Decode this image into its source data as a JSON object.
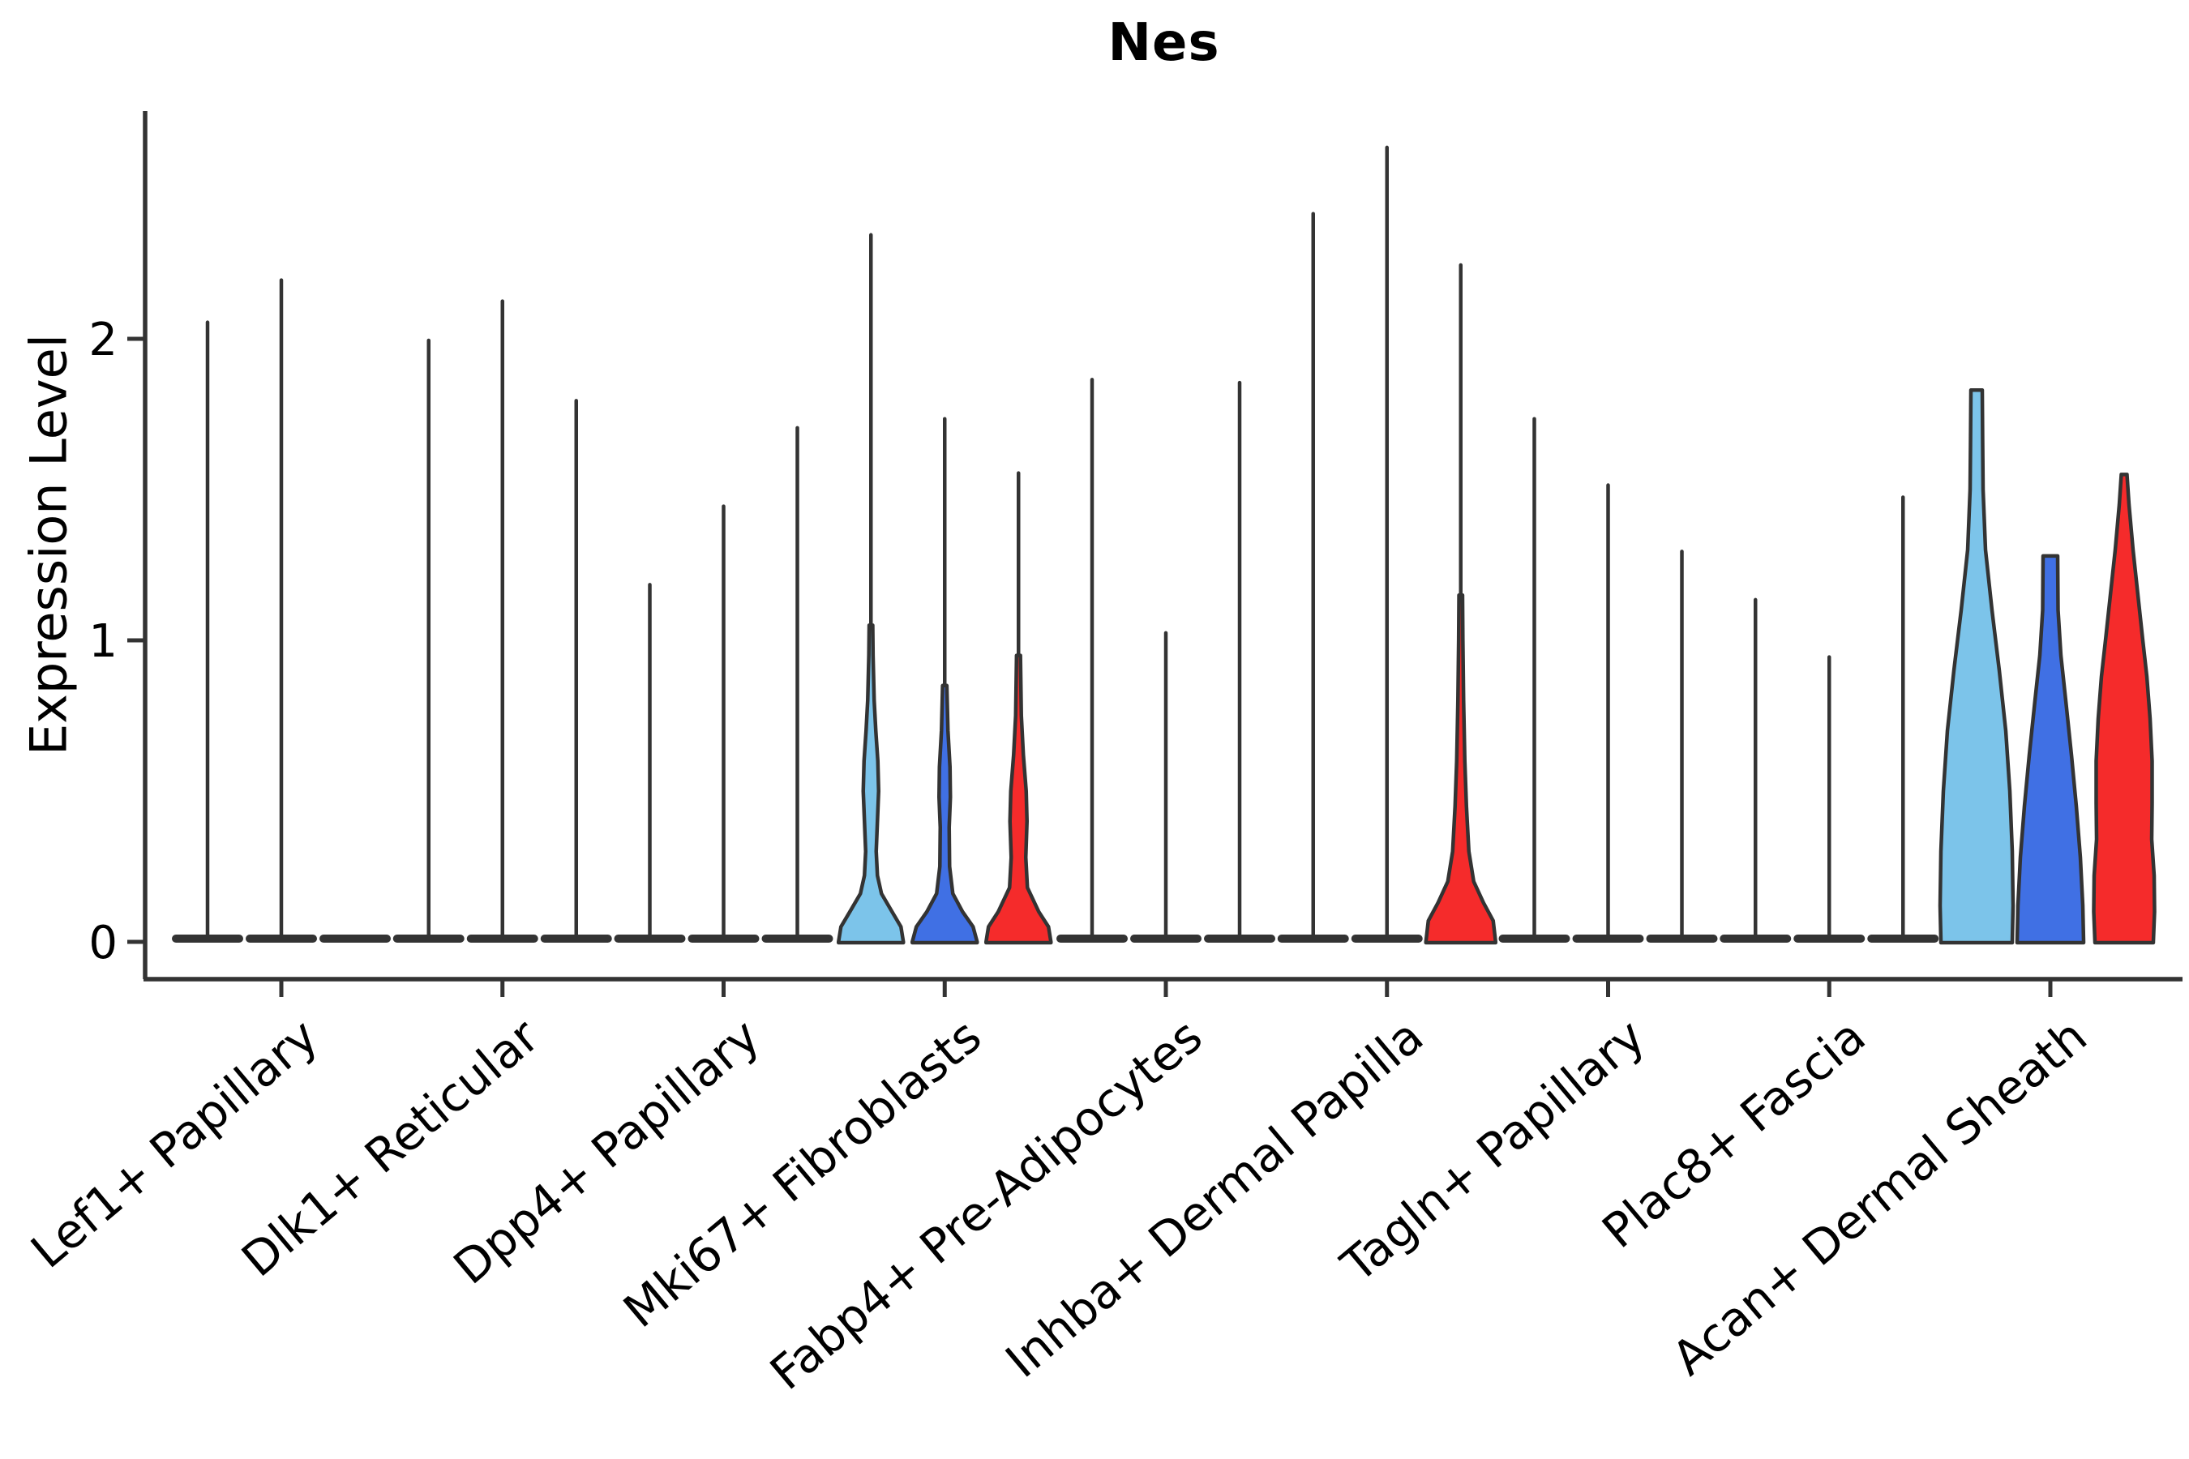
{
  "chart_data": {
    "type": "violin",
    "title": "Nes",
    "ylabel": "Expression Level",
    "yticks": [
      0,
      1,
      2
    ],
    "ylim": [
      0,
      2.75
    ],
    "x_tick_rotation_deg": 40,
    "grid": false,
    "legend_position": "none",
    "outline_color": "#333333",
    "series_colors": {
      "lightblue": "#7CC4EA",
      "blue": "#4070E4",
      "red": "#F52B2B"
    },
    "description": "Split violin plot of Nes expression per fibroblast cluster; three violins (lightblue, blue, red) per cluster; max value listed per violin; most mass at 0.",
    "categories": [
      {
        "label": "Lef1+ Papillary",
        "violins": [
          {
            "color": "lightblue",
            "shape": "spike",
            "max": 2.06
          },
          {
            "color": "blue",
            "shape": "spike",
            "max": 2.2
          },
          {
            "color": "red",
            "shape": "flat",
            "max": 0
          }
        ]
      },
      {
        "label": "Dlk1+ Reticular",
        "violins": [
          {
            "color": "lightblue",
            "shape": "spike",
            "max": 2.0
          },
          {
            "color": "blue",
            "shape": "spike",
            "max": 2.13
          },
          {
            "color": "red",
            "shape": "spike",
            "max": 1.8
          }
        ]
      },
      {
        "label": "Dpp4+ Papillary",
        "violins": [
          {
            "color": "lightblue",
            "shape": "spike",
            "max": 1.19
          },
          {
            "color": "blue",
            "shape": "spike",
            "max": 1.45
          },
          {
            "color": "red",
            "shape": "spike",
            "max": 1.71
          }
        ]
      },
      {
        "label": "Mki67+ Fibroblasts",
        "violins": [
          {
            "color": "lightblue",
            "shape": "belly",
            "max": 2.35,
            "profile": [
              [
                0,
                40
              ],
              [
                0.05,
                37
              ],
              [
                0.1,
                26
              ],
              [
                0.16,
                13
              ],
              [
                0.22,
                8
              ],
              [
                0.3,
                6.5
              ],
              [
                0.4,
                8
              ],
              [
                0.5,
                9.5
              ],
              [
                0.6,
                8.5
              ],
              [
                0.7,
                6
              ],
              [
                0.8,
                4
              ],
              [
                0.95,
                2.6
              ],
              [
                1.05,
                2.2
              ]
            ]
          },
          {
            "color": "blue",
            "shape": "belly",
            "max": 1.74,
            "profile": [
              [
                0,
                40
              ],
              [
                0.05,
                35
              ],
              [
                0.1,
                22
              ],
              [
                0.16,
                10
              ],
              [
                0.25,
                6
              ],
              [
                0.38,
                5.5
              ],
              [
                0.48,
                7
              ],
              [
                0.58,
                6.5
              ],
              [
                0.7,
                4
              ],
              [
                0.85,
                2.6
              ]
            ]
          },
          {
            "color": "red",
            "shape": "belly",
            "max": 1.56,
            "profile": [
              [
                0,
                40
              ],
              [
                0.05,
                37
              ],
              [
                0.1,
                25
              ],
              [
                0.18,
                11
              ],
              [
                0.28,
                9
              ],
              [
                0.4,
                10.5
              ],
              [
                0.5,
                9.5
              ],
              [
                0.62,
                6
              ],
              [
                0.75,
                3.5
              ],
              [
                0.95,
                2.4
              ]
            ]
          }
        ]
      },
      {
        "label": "Fabp4+ Pre-Adipocytes",
        "violins": [
          {
            "color": "lightblue",
            "shape": "spike",
            "max": 1.87
          },
          {
            "color": "blue",
            "shape": "spike",
            "max": 1.03
          },
          {
            "color": "red",
            "shape": "spike",
            "max": 1.86
          }
        ]
      },
      {
        "label": "Inhba+ Dermal Papilla",
        "violins": [
          {
            "color": "lightblue",
            "shape": "spike",
            "max": 2.42
          },
          {
            "color": "blue",
            "shape": "spike",
            "max": 2.64
          },
          {
            "color": "red",
            "shape": "belly",
            "max": 2.25,
            "profile": [
              [
                0,
                43
              ],
              [
                0.07,
                40
              ],
              [
                0.13,
                28
              ],
              [
                0.2,
                16
              ],
              [
                0.3,
                10
              ],
              [
                0.45,
                7
              ],
              [
                0.6,
                5
              ],
              [
                0.8,
                3.5
              ],
              [
                1.0,
                2.6
              ],
              [
                1.15,
                2.2
              ]
            ]
          }
        ]
      },
      {
        "label": "Tagln+ Papillary",
        "violins": [
          {
            "color": "lightblue",
            "shape": "spike",
            "max": 1.74
          },
          {
            "color": "blue",
            "shape": "spike",
            "max": 1.52
          },
          {
            "color": "red",
            "shape": "spike",
            "max": 1.3
          }
        ]
      },
      {
        "label": "Plac8+ Fascia",
        "violins": [
          {
            "color": "lightblue",
            "shape": "spike",
            "max": 1.14
          },
          {
            "color": "blue",
            "shape": "spike",
            "max": 0.95
          },
          {
            "color": "red",
            "shape": "spike",
            "max": 1.48
          }
        ]
      },
      {
        "label": "Acan+ Dermal Sheath",
        "violins": [
          {
            "color": "lightblue",
            "shape": "wide",
            "max": 1.83,
            "profile": [
              [
                0,
                44
              ],
              [
                0.12,
                45
              ],
              [
                0.3,
                44
              ],
              [
                0.5,
                41
              ],
              [
                0.7,
                36
              ],
              [
                0.9,
                28
              ],
              [
                1.1,
                19
              ],
              [
                1.3,
                11
              ],
              [
                1.5,
                8
              ],
              [
                1.65,
                7.5
              ],
              [
                1.83,
                7
              ]
            ]
          },
          {
            "color": "blue",
            "shape": "wide",
            "max": 1.28,
            "profile": [
              [
                0,
                41
              ],
              [
                0.12,
                40
              ],
              [
                0.28,
                37
              ],
              [
                0.45,
                32
              ],
              [
                0.62,
                26
              ],
              [
                0.8,
                19
              ],
              [
                0.95,
                13
              ],
              [
                1.1,
                9.5
              ],
              [
                1.28,
                9
              ]
            ]
          },
          {
            "color": "red",
            "shape": "wide",
            "max": 1.55,
            "profile": [
              [
                0,
                36
              ],
              [
                0.1,
                37.5
              ],
              [
                0.22,
                37
              ],
              [
                0.34,
                34
              ],
              [
                0.46,
                34.5
              ],
              [
                0.6,
                34.5
              ],
              [
                0.74,
                32
              ],
              [
                0.88,
                28
              ],
              [
                1.0,
                23
              ],
              [
                1.15,
                17
              ],
              [
                1.3,
                11
              ],
              [
                1.45,
                6
              ],
              [
                1.55,
                3.5
              ]
            ]
          }
        ]
      }
    ]
  }
}
